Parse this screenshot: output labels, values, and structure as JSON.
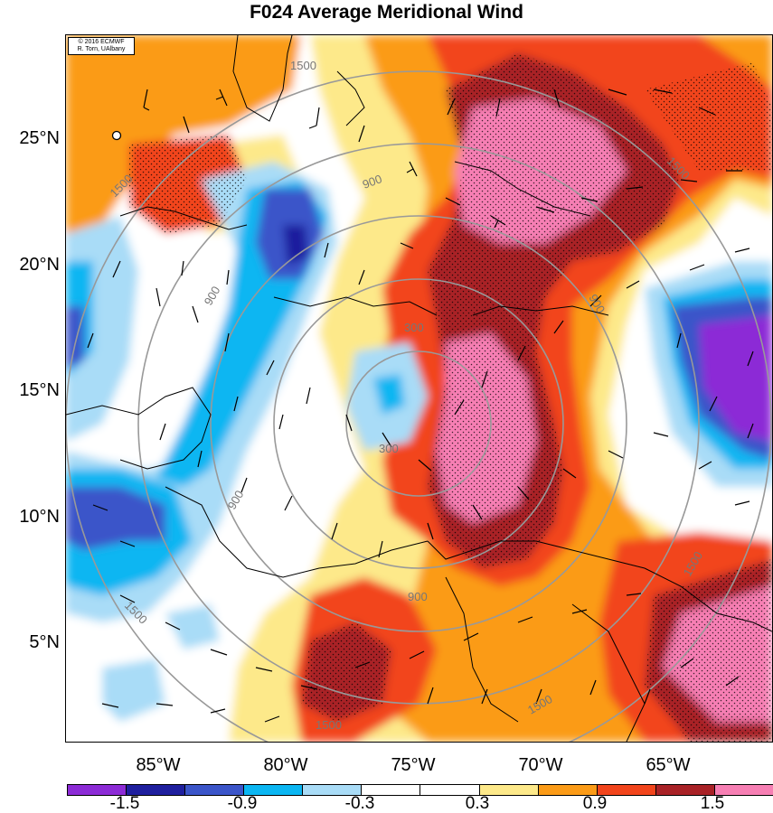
{
  "title": "F024 Average Meridional Wind",
  "credit": {
    "line1": "© 2016 ECMWF",
    "line2": "R. Torn, UAlbany"
  },
  "lat_labels": [
    "25°N",
    "20°N",
    "15°N",
    "10°N",
    "5°N"
  ],
  "lon_labels": [
    "85°W",
    "80°W",
    "75°W",
    "70°W",
    "65°W"
  ],
  "colorbar": {
    "colors": [
      "#8c2bd6",
      "#1f1f9e",
      "#3b55c9",
      "#0bb6f2",
      "#a9dcf7",
      "#ffffff",
      "#ffffff",
      "#fde98a",
      "#fb9b17",
      "#f2451c",
      "#a92227",
      "#f77fb4"
    ],
    "labels": [
      "-1.5",
      "-0.9",
      "-0.3",
      "0.3",
      "0.9",
      "1.5"
    ]
  },
  "contour_labels": [
    "1500",
    "1500",
    "900",
    "900",
    "300",
    "300",
    "900",
    "900",
    "1500",
    "1500",
    "1500",
    "1500",
    "900",
    "1500"
  ]
}
